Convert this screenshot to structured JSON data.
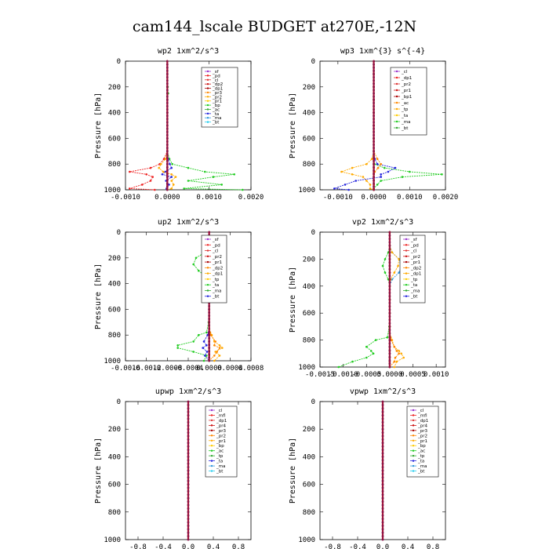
{
  "figure": {
    "title": "cam144_lscale  BUDGET at270E,-12N"
  },
  "chart_data": [
    {
      "type": "line",
      "title": "wp2   1xm^2/s^3",
      "ylabel": "Pressure [hPa]",
      "xlim": [
        -0.001,
        0.002
      ],
      "ylim": [
        1000,
        0
      ],
      "xticks": [
        "-0.0010",
        "0.0000",
        "0.0010",
        "0.0020"
      ],
      "yticks": [
        "0",
        "200",
        "400",
        "600",
        "800",
        "1000"
      ],
      "legend": [
        "_sf",
        "_pd",
        "_cl",
        "_dp2",
        "_dp1",
        "_pr3",
        "_pr2",
        "_pr1",
        "_bp",
        "_ac",
        "_ta",
        "_ma",
        "_bt"
      ],
      "legend_placement": "top-right",
      "p": [
        0,
        100,
        200,
        250,
        300,
        400,
        500,
        600,
        700,
        760,
        800,
        830,
        860,
        880,
        900,
        930,
        960,
        990,
        1000
      ],
      "series": [
        {
          "name": "_pr1",
          "color": "#22cc22",
          "values": [
            0,
            0,
            1e-05,
            2e-05,
            0,
            0,
            0,
            0,
            0,
            5e-05,
            0.00012,
            0.0005,
            0.0009,
            0.0016,
            0.0011,
            0.0005,
            0.0013,
            0.0004,
            0.0018
          ]
        },
        {
          "name": "_dp2",
          "color": "#ee2222",
          "values": [
            0,
            0,
            0,
            0,
            0,
            0,
            0,
            0,
            0,
            -8e-05,
            -0.00018,
            -0.0004,
            -0.0009,
            -0.0005,
            -0.00035,
            -0.0004,
            -0.0006,
            -0.0009,
            -0.0003
          ]
        },
        {
          "name": "_ac",
          "color": "#2222dd",
          "values": [
            0,
            0,
            0,
            0,
            0,
            0,
            0,
            0,
            0,
            2e-05,
            6e-05,
            0.0001,
            -5e-05,
            -0.00012,
            0.0001,
            -3e-05,
            4e-05,
            -2e-05,
            0
          ]
        },
        {
          "name": "_pr2",
          "color": "#ffaa00",
          "values": [
            0,
            0,
            0,
            0,
            0,
            0,
            0,
            0,
            0,
            -4e-05,
            -0.00015,
            -0.0002,
            -0.0001,
            0.0001,
            0.0002,
            0.0001,
            0.00015,
            0.0001,
            0
          ]
        },
        {
          "name": "_bt",
          "color": "#aa2288",
          "values": [
            0,
            0,
            0,
            0,
            0,
            0,
            0,
            0,
            0,
            0,
            0,
            0,
            0,
            0,
            0,
            0,
            0,
            0,
            0
          ]
        }
      ]
    },
    {
      "type": "line",
      "title": "wp3   1xm^{3} s^{-4}",
      "ylabel": "Pressure [hPa]",
      "xlim": [
        -0.0015,
        0.002
      ],
      "ylim": [
        1000,
        0
      ],
      "xticks": [
        "-0.0010",
        "0.0000",
        "0.0010",
        "0.0020"
      ],
      "yticks": [
        "0",
        "200",
        "400",
        "600",
        "800",
        "1000"
      ],
      "legend": [
        "_cl",
        "_dp1",
        "_pr2",
        "_pr1",
        "_bp1",
        "_ac",
        "_tp",
        "_ta",
        "_ma",
        "_bt"
      ],
      "legend_placement": "top-right",
      "p": [
        0,
        100,
        200,
        300,
        400,
        500,
        600,
        700,
        760,
        800,
        830,
        860,
        880,
        900,
        930,
        960,
        990,
        1000
      ],
      "series": [
        {
          "name": "_ac",
          "color": "#22cc22",
          "values": [
            0,
            0,
            0,
            0,
            0,
            0,
            0,
            0,
            0,
            2e-05,
            0.0003,
            0.001,
            0.0019,
            0.0008,
            0.0002,
            0.0001,
            0,
            0
          ]
        },
        {
          "name": "_pr2",
          "color": "#ffaa00",
          "values": [
            0,
            0,
            0,
            0,
            0,
            0,
            0,
            0,
            -5e-05,
            -0.0002,
            -0.0006,
            -0.0009,
            -0.0006,
            -0.0003,
            -0.0002,
            -0.0001,
            -0.0001,
            0
          ]
        },
        {
          "name": "_dp1",
          "color": "#2222dd",
          "values": [
            0,
            0,
            0,
            0,
            0,
            0,
            0,
            0,
            3e-05,
            0.0001,
            0.0006,
            0.0004,
            0.0002,
            0.0002,
            -0.0005,
            -0.0008,
            -0.0011,
            -0.0007
          ]
        },
        {
          "name": "_pr1",
          "color": "#ff8800",
          "values": [
            0,
            0,
            0,
            0,
            0,
            0,
            0,
            0,
            0.0001,
            0.0002,
            0.00012,
            3e-05,
            0,
            0,
            0,
            0,
            0,
            0
          ]
        },
        {
          "name": "_cl",
          "color": "#cc1111",
          "values": [
            0,
            0,
            0,
            0,
            0,
            0,
            0,
            0,
            0,
            0,
            0,
            0,
            0,
            0,
            0,
            0,
            0,
            0
          ]
        }
      ]
    },
    {
      "type": "line",
      "title": "up2   1xm^2/s^3",
      "ylabel": "Pressure [hPa]",
      "xlim": [
        -0.0016,
        0.0008
      ],
      "ylim": [
        1000,
        0
      ],
      "xticks": [
        "-0.0016",
        "-0.0012",
        "-0.0008",
        "-0.0004",
        "0.0000",
        "0.0004",
        "0.0008"
      ],
      "yticks": [
        "0",
        "200",
        "400",
        "600",
        "800",
        "1000"
      ],
      "legend": [
        "_sf",
        "_pd",
        "_cl",
        "_pr2",
        "_pr1",
        "_dp2",
        "_dp1",
        "_tp",
        "_ta",
        "_ma",
        "_bt"
      ],
      "legend_placement": "top-right",
      "p": [
        0,
        100,
        150,
        200,
        250,
        300,
        350,
        400,
        500,
        600,
        700,
        780,
        800,
        850,
        880,
        900,
        930,
        960,
        1000
      ],
      "series": [
        {
          "name": "_dp2",
          "color": "#22cc22",
          "values": [
            0,
            0,
            -5e-05,
            -0.00025,
            -0.0003,
            -0.0002,
            -5e-05,
            0,
            0,
            0,
            -1e-05,
            -5e-05,
            -0.0002,
            -0.0003,
            -0.0006,
            -0.0006,
            -0.0003,
            -5e-05,
            -0.0001
          ]
        },
        {
          "name": "_pr2",
          "color": "#ffaa00",
          "values": [
            0,
            0,
            0,
            0,
            0,
            0,
            0,
            0,
            0,
            0,
            0,
            2e-05,
            5e-05,
            0.0001,
            0.0002,
            0.00025,
            0.00012,
            0.0002,
            0.0001
          ]
        },
        {
          "name": "_pr1",
          "color": "#ff8800",
          "values": [
            0,
            0,
            0,
            0,
            0,
            0,
            0,
            0,
            0,
            0,
            0,
            1e-05,
            3e-05,
            0.00012,
            0.0001,
            0.0002,
            0.00015,
            0.0001,
            0
          ]
        },
        {
          "name": "_dp1",
          "color": "#2222dd",
          "values": [
            0,
            0,
            0,
            0,
            0,
            0,
            0,
            0,
            0,
            0,
            0,
            -1e-05,
            -3e-05,
            -0.0001,
            -5e-05,
            -0.00012,
            -4e-05,
            -8e-05,
            0
          ]
        },
        {
          "name": "_cl",
          "color": "#cc1111",
          "values": [
            0,
            0,
            0,
            0,
            0,
            0,
            0,
            0,
            0,
            0,
            0,
            0,
            0,
            0,
            0,
            0,
            0,
            0,
            0
          ]
        }
      ]
    },
    {
      "type": "line",
      "title": "vp2   1xm^2/s^3",
      "ylabel": "Pressure [hPa]",
      "xlim": [
        -0.0015,
        0.0012
      ],
      "ylim": [
        1000,
        0
      ],
      "xticks": [
        "-0.0015",
        "-0.0010",
        "-0.0005",
        "0.0000",
        "0.0005",
        "0.0010"
      ],
      "yticks": [
        "0",
        "200",
        "400",
        "600",
        "800",
        "1000"
      ],
      "legend": [
        "_sf",
        "_pd",
        "_cl",
        "_pr2",
        "_pr1",
        "_dp2",
        "_dp1",
        "_tp",
        "_ta",
        "_ma",
        "_bt"
      ],
      "legend_placement": "top-right",
      "p": [
        0,
        100,
        150,
        200,
        250,
        300,
        350,
        400,
        500,
        600,
        700,
        780,
        800,
        850,
        880,
        900,
        930,
        960,
        1000
      ],
      "series": [
        {
          "name": "_dp2",
          "color": "#22cc22",
          "values": [
            0,
            0,
            -3e-05,
            -0.0001,
            -0.00015,
            -0.0001,
            -3e-05,
            0,
            0,
            0,
            -1e-05,
            -5e-05,
            -0.0003,
            -0.0005,
            -0.0004,
            -0.00035,
            -0.0005,
            -0.0008,
            -0.0011
          ]
        },
        {
          "name": "_dp1",
          "color": "#3399dd",
          "values": [
            0,
            0,
            5e-05,
            0.0002,
            0.00025,
            0.0002,
            5e-05,
            0,
            0,
            0,
            0,
            0,
            0,
            0,
            0,
            0,
            0,
            0,
            0
          ]
        },
        {
          "name": "_pr2",
          "color": "#ffaa00",
          "values": [
            0,
            0,
            5e-05,
            0.0002,
            0.00018,
            0.0001,
            2e-05,
            0,
            0,
            0,
            0,
            2e-05,
            5e-05,
            0.0001,
            0.0002,
            0.00025,
            0.0003,
            0.00015,
            0.0001
          ]
        },
        {
          "name": "_pr1",
          "color": "#ff8800",
          "values": [
            0,
            0,
            0,
            0,
            0,
            0,
            0,
            0,
            0,
            0,
            0,
            1e-05,
            3e-05,
            0.0001,
            0.00015,
            0.0002,
            0.00012,
            0.0001,
            0
          ]
        },
        {
          "name": "_cl",
          "color": "#cc1111",
          "values": [
            0,
            0,
            0,
            0,
            0,
            0,
            0,
            0,
            0,
            0,
            0,
            0,
            0,
            0,
            0,
            0,
            0,
            0,
            0
          ]
        }
      ]
    },
    {
      "type": "line",
      "title": "upwp   1xm^2/s^3",
      "ylabel": "Pressure [hPa]",
      "xlim": [
        -1.0,
        1.0
      ],
      "ylim": [
        1000,
        0
      ],
      "xticks": [
        "-0.8",
        "-0.4",
        "0.0",
        "0.4",
        "0.8"
      ],
      "yticks": [
        "0",
        "200",
        "400",
        "600",
        "800",
        "1000"
      ],
      "legend": [
        "_cl",
        "_mfl",
        "_dp1",
        "_pr4",
        "_pr3",
        "_pr2",
        "_pr1",
        "_bp",
        "_ac",
        "_tp",
        "_ta",
        "_ma",
        "_bt"
      ],
      "legend_placement": "top-right",
      "p": [
        0,
        100,
        200,
        300,
        400,
        500,
        600,
        700,
        800,
        900,
        1000
      ],
      "series": [
        {
          "name": "_bt",
          "color": "#aa2288",
          "values": [
            0,
            0,
            0,
            0,
            0,
            0,
            0,
            0,
            0,
            0,
            0
          ]
        }
      ]
    },
    {
      "type": "line",
      "title": "vpwp   1xm^2/s^3",
      "ylabel": "Pressure [hPa]",
      "xlim": [
        -1.0,
        1.0
      ],
      "ylim": [
        1000,
        0
      ],
      "xticks": [
        "-0.8",
        "-0.4",
        "0.0",
        "0.4",
        "0.8"
      ],
      "yticks": [
        "0",
        "200",
        "400",
        "600",
        "800",
        "1000"
      ],
      "legend": [
        "_cl",
        "_mfl",
        "_dp1",
        "_pr4",
        "_pr3",
        "_pr2",
        "_pr1",
        "_bp",
        "_ac",
        "_tp",
        "_ta",
        "_ma",
        "_bt"
      ],
      "legend_placement": "top-right",
      "p": [
        0,
        100,
        200,
        300,
        400,
        500,
        600,
        700,
        800,
        900,
        1000
      ],
      "series": [
        {
          "name": "_bt",
          "color": "#aa2288",
          "values": [
            0,
            0,
            0,
            0,
            0,
            0,
            0,
            0,
            0,
            0,
            0
          ]
        }
      ]
    }
  ],
  "legend_colors": [
    "#9933cc",
    "#ee2222",
    "#dd3333",
    "#cc1111",
    "#aa0000",
    "#ff8800",
    "#ffaa00",
    "#ffcc00",
    "#22cc22",
    "#33aa33",
    "#2222dd",
    "#3399dd",
    "#22ccee",
    "#33dddd"
  ]
}
